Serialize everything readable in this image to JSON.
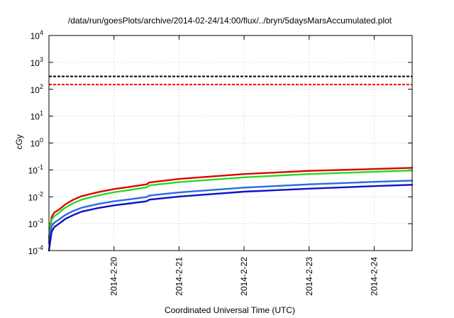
{
  "chart_data": {
    "type": "line",
    "title": "/data/run/goesPlots/archive/2014-02-24/14:00/flux/../bryn/5daysMarsAccumulated.plot",
    "xlabel": "Coordinated Universal Time (UTC)",
    "ylabel": "cGy",
    "y_scale": "log",
    "ylim": [
      0.0001,
      10000
    ],
    "xlim": [
      "2014-02-19T00:00",
      "2014-02-24T14:00"
    ],
    "grid": true,
    "legend": "none",
    "x_ticks": [
      {
        "x": "2014-02-20T00:00",
        "label": "2014-2-20"
      },
      {
        "x": "2014-02-21T00:00",
        "label": "2014-2-21"
      },
      {
        "x": "2014-02-22T00:00",
        "label": "2014-2-22"
      },
      {
        "x": "2014-02-23T00:00",
        "label": "2014-2-23"
      },
      {
        "x": "2014-02-24T00:00",
        "label": "2014-2-24"
      }
    ],
    "y_ticks": [
      {
        "y": 0.0001,
        "base": "10",
        "exp": "-4"
      },
      {
        "y": 0.001,
        "base": "10",
        "exp": "-3"
      },
      {
        "y": 0.01,
        "base": "10",
        "exp": "-2"
      },
      {
        "y": 0.1,
        "base": "10",
        "exp": "-1"
      },
      {
        "y": 1,
        "base": "10",
        "exp": "0"
      },
      {
        "y": 10,
        "base": "10",
        "exp": "1"
      },
      {
        "y": 100,
        "base": "10",
        "exp": "2"
      },
      {
        "y": 1000,
        "base": "10",
        "exp": "3"
      },
      {
        "y": 10000,
        "base": "10",
        "exp": "4"
      }
    ],
    "thresholds": [
      {
        "y": 300,
        "color": "#000000",
        "dash": true
      },
      {
        "y": 150,
        "color": "#ff0000",
        "dash": true
      }
    ],
    "series": [
      {
        "color": "#e00000",
        "points": [
          [
            "2014-02-19T00:00",
            0.0003
          ],
          [
            "2014-02-19T01:00",
            0.0018
          ],
          [
            "2014-02-19T02:00",
            0.0026
          ],
          [
            "2014-02-19T04:00",
            0.0035
          ],
          [
            "2014-02-19T06:00",
            0.0052
          ],
          [
            "2014-02-19T09:00",
            0.0078
          ],
          [
            "2014-02-19T12:00",
            0.0105
          ],
          [
            "2014-02-19T18:00",
            0.0148
          ],
          [
            "2014-02-20T00:00",
            0.0195
          ],
          [
            "2014-02-20T06:00",
            0.0235
          ],
          [
            "2014-02-20T12:00",
            0.029
          ],
          [
            "2014-02-20T13:00",
            0.034
          ],
          [
            "2014-02-21T00:00",
            0.046
          ],
          [
            "2014-02-22T00:00",
            0.07
          ],
          [
            "2014-02-23T00:00",
            0.092
          ],
          [
            "2014-02-24T00:00",
            0.108
          ],
          [
            "2014-02-24T14:00",
            0.12
          ]
        ]
      },
      {
        "color": "#22dd22",
        "points": [
          [
            "2014-02-19T00:00",
            0.00025
          ],
          [
            "2014-02-19T01:00",
            0.0014
          ],
          [
            "2014-02-19T02:00",
            0.0019
          ],
          [
            "2014-02-19T04:00",
            0.0027
          ],
          [
            "2014-02-19T06:00",
            0.0039
          ],
          [
            "2014-02-19T09:00",
            0.0058
          ],
          [
            "2014-02-19T12:00",
            0.0078
          ],
          [
            "2014-02-19T18:00",
            0.0112
          ],
          [
            "2014-02-20T00:00",
            0.0148
          ],
          [
            "2014-02-20T06:00",
            0.018
          ],
          [
            "2014-02-20T12:00",
            0.0225
          ],
          [
            "2014-02-20T13:00",
            0.0265
          ],
          [
            "2014-02-21T00:00",
            0.035
          ],
          [
            "2014-02-22T00:00",
            0.053
          ],
          [
            "2014-02-23T00:00",
            0.07
          ],
          [
            "2014-02-24T00:00",
            0.085
          ],
          [
            "2014-02-24T14:00",
            0.095
          ]
        ]
      },
      {
        "color": "#2a6be0",
        "points": [
          [
            "2014-02-19T00:00",
            0.0002
          ],
          [
            "2014-02-19T01:00",
            0.0008
          ],
          [
            "2014-02-19T02:00",
            0.0011
          ],
          [
            "2014-02-19T04:00",
            0.0015
          ],
          [
            "2014-02-19T06:00",
            0.0021
          ],
          [
            "2014-02-19T09:00",
            0.003
          ],
          [
            "2014-02-19T12:00",
            0.0039
          ],
          [
            "2014-02-19T18:00",
            0.0054
          ],
          [
            "2014-02-20T00:00",
            0.0068
          ],
          [
            "2014-02-20T06:00",
            0.0081
          ],
          [
            "2014-02-20T12:00",
            0.0098
          ],
          [
            "2014-02-20T13:00",
            0.0112
          ],
          [
            "2014-02-21T00:00",
            0.0145
          ],
          [
            "2014-02-22T00:00",
            0.022
          ],
          [
            "2014-02-23T00:00",
            0.029
          ],
          [
            "2014-02-24T00:00",
            0.036
          ],
          [
            "2014-02-24T14:00",
            0.04
          ]
        ]
      },
      {
        "color": "#1010c8",
        "points": [
          [
            "2014-02-19T00:00",
            0.0001
          ],
          [
            "2014-02-19T01:00",
            0.0005
          ],
          [
            "2014-02-19T02:00",
            0.00075
          ],
          [
            "2014-02-19T04:00",
            0.00105
          ],
          [
            "2014-02-19T06:00",
            0.0015
          ],
          [
            "2014-02-19T09:00",
            0.0021
          ],
          [
            "2014-02-19T12:00",
            0.0028
          ],
          [
            "2014-02-19T18:00",
            0.0038
          ],
          [
            "2014-02-20T00:00",
            0.0048
          ],
          [
            "2014-02-20T06:00",
            0.0057
          ],
          [
            "2014-02-20T12:00",
            0.0068
          ],
          [
            "2014-02-20T13:00",
            0.0078
          ],
          [
            "2014-02-21T00:00",
            0.0102
          ],
          [
            "2014-02-22T00:00",
            0.0155
          ],
          [
            "2014-02-23T00:00",
            0.02
          ],
          [
            "2014-02-24T00:00",
            0.025
          ],
          [
            "2014-02-24T14:00",
            0.028
          ]
        ]
      }
    ]
  }
}
